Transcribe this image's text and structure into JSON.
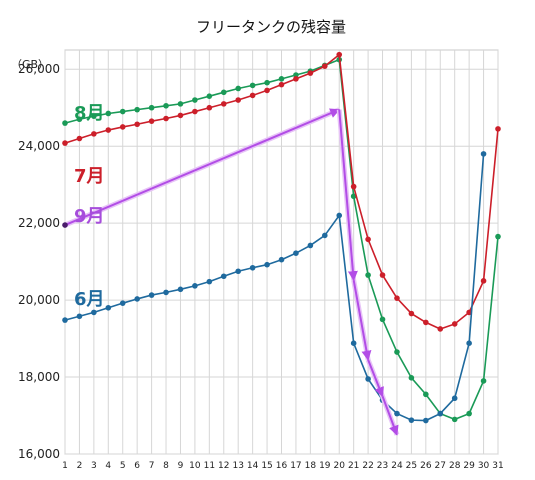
{
  "chart_data": {
    "type": "line",
    "title": "フリータンクの残容量",
    "unit_label": "（GB）",
    "x": [
      1,
      2,
      3,
      4,
      5,
      6,
      7,
      8,
      9,
      10,
      11,
      12,
      13,
      14,
      15,
      16,
      17,
      18,
      19,
      20,
      21,
      22,
      23,
      24,
      25,
      26,
      27,
      28,
      29,
      30,
      31
    ],
    "yticks": [
      16000,
      18000,
      20000,
      22000,
      24000,
      26000
    ],
    "ytick_labels": [
      "16,000",
      "18,000",
      "20,000",
      "22,000",
      "24,000",
      "26,000"
    ],
    "ylim": [
      16000,
      26500
    ],
    "grid": true,
    "series": [
      {
        "name": "8月",
        "color": "#1a9a57",
        "values": [
          24600,
          24700,
          24780,
          24850,
          24900,
          24950,
          25000,
          25050,
          25100,
          25200,
          25300,
          25400,
          25500,
          25580,
          25650,
          25750,
          25850,
          25950,
          26100,
          26250,
          22700,
          20650,
          19500,
          18650,
          17980,
          17550,
          17050,
          16900,
          17050,
          17900,
          21650
        ]
      },
      {
        "name": "7月",
        "color": "#cc1f2a",
        "values": [
          24080,
          24200,
          24320,
          24420,
          24500,
          24570,
          24650,
          24720,
          24800,
          24900,
          25000,
          25100,
          25200,
          25320,
          25450,
          25600,
          25750,
          25900,
          26080,
          26380,
          22950,
          21580,
          20650,
          20050,
          19650,
          19420,
          19250,
          19380,
          19680,
          20500,
          24450
        ]
      },
      {
        "name": "6月",
        "color": "#1f6a9e",
        "values": [
          19480,
          19580,
          19680,
          19800,
          19920,
          20030,
          20130,
          20200,
          20280,
          20370,
          20480,
          20620,
          20750,
          20840,
          20920,
          21050,
          21220,
          21420,
          21680,
          22200,
          18880,
          17950,
          17400,
          17050,
          16880,
          16870,
          17050,
          17450,
          18880,
          23800,
          null
        ]
      },
      {
        "name": "9月",
        "color": "#a64ddb",
        "values": [
          21950,
          null,
          null,
          null,
          null,
          null,
          null,
          null,
          null,
          null,
          null,
          null,
          null,
          null,
          null,
          null,
          null,
          null,
          null,
          24950,
          20520,
          18450,
          17500,
          16500,
          null,
          null,
          null,
          null,
          null,
          null,
          null
        ]
      }
    ],
    "label_positions": {
      "8月": "upper-left",
      "7月": "left",
      "9月": "left",
      "6月": "lower-left"
    }
  }
}
